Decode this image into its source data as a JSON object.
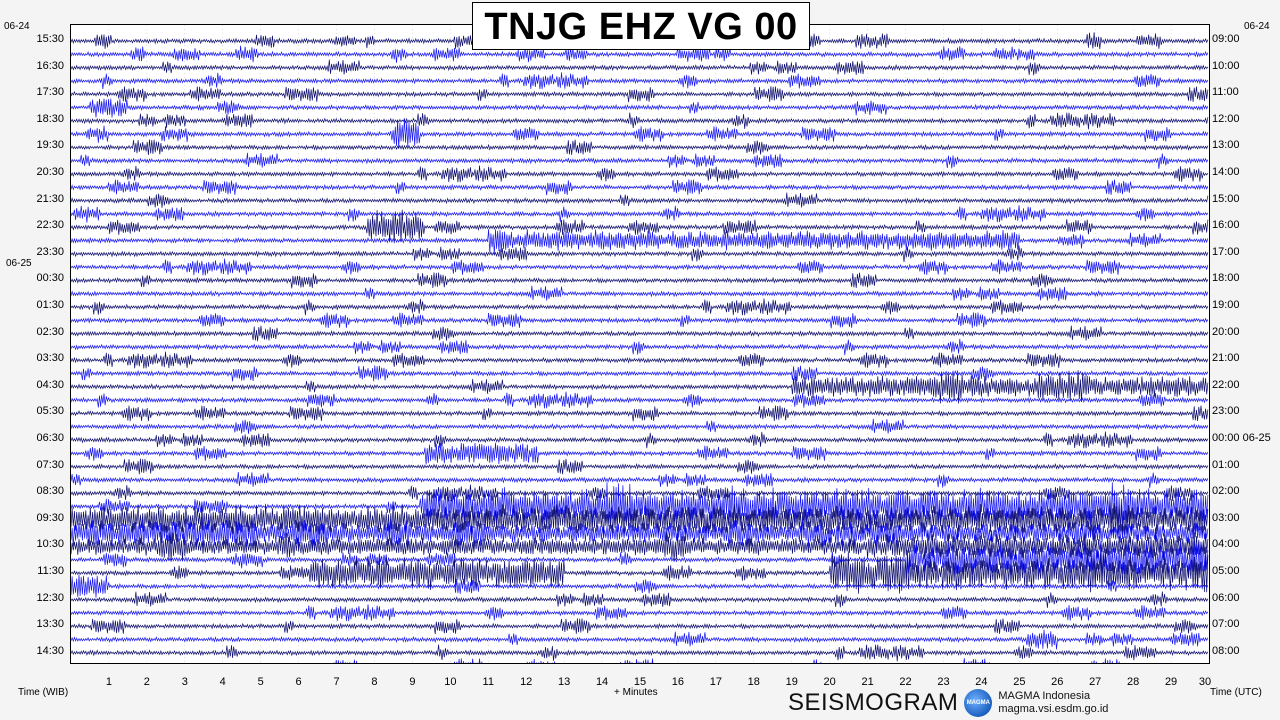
{
  "chart_data": {
    "type": "line",
    "title": "TNJG EHZ VG 00",
    "xlabel": "+ Minutes",
    "left_axis_label": "Time (WIB)",
    "right_axis_label": "Time (UTC)",
    "xlim": [
      0,
      30
    ],
    "x_ticks": [
      "1",
      "2",
      "3",
      "4",
      "5",
      "6",
      "7",
      "8",
      "9",
      "10",
      "11",
      "12",
      "13",
      "14",
      "15",
      "16",
      "17",
      "18",
      "19",
      "20",
      "21",
      "22",
      "23",
      "24",
      "25",
      "26",
      "27",
      "28",
      "29",
      "30"
    ],
    "left_date_top": "06-24",
    "left_date_mid": "06-25",
    "right_date_top": "06-24",
    "left_hour_labels": [
      "15:30",
      "16:30",
      "17:30",
      "18:30",
      "19:30",
      "20:30",
      "21:30",
      "22:30",
      "23:30",
      "00:30",
      "01:30",
      "02:30",
      "03:30",
      "04:30",
      "05:30",
      "06:30",
      "07:30",
      "08:30",
      "09:30",
      "10:30",
      "11:30",
      "12:30",
      "13:30",
      "14:30"
    ],
    "right_hour_labels": [
      "09:00",
      "10:00",
      "11:00",
      "12:00",
      "13:00",
      "14:00",
      "15:00",
      "16:00",
      "17:00",
      "18:00",
      "19:00",
      "20:00",
      "21:00",
      "22:00",
      "23:00",
      "00:00 06-25",
      "01:00",
      "02:00",
      "03:00",
      "04:00",
      "05:00",
      "06:00",
      "07:00",
      "08:00"
    ],
    "trace_count": 48,
    "trace_colors": [
      "#0c0c6e",
      "#1414f0"
    ],
    "events": [
      {
        "trace": 5,
        "start_min": 0.5,
        "end_min": 1.5,
        "amplitude": 0.6
      },
      {
        "trace": 7,
        "start_min": 8.5,
        "end_min": 9.2,
        "amplitude": 0.6
      },
      {
        "trace": 14,
        "start_min": 7.8,
        "end_min": 9.3,
        "amplitude": 1.0
      },
      {
        "trace": 15,
        "start_min": 11,
        "end_min": 25,
        "amplitude": 0.55
      },
      {
        "trace": 26,
        "start_min": 19,
        "end_min": 30,
        "amplitude": 0.6
      },
      {
        "trace": 31,
        "start_min": 9.3,
        "end_min": 12.3,
        "amplitude": 0.7
      },
      {
        "trace": 35,
        "start_min": 9.2,
        "end_min": 30,
        "amplitude": 1.2
      },
      {
        "trace": 36,
        "start_min": 0,
        "end_min": 30,
        "amplitude": 0.9
      },
      {
        "trace": 37,
        "start_min": 0,
        "end_min": 5,
        "amplitude": 0.9
      },
      {
        "trace": 37,
        "start_min": 5,
        "end_min": 30,
        "amplitude": 0.6
      },
      {
        "trace": 38,
        "start_min": 0,
        "end_min": 30,
        "amplitude": 0.5
      },
      {
        "trace": 38,
        "start_min": 21,
        "end_min": 30,
        "amplitude": 0.8
      },
      {
        "trace": 39,
        "start_min": 22,
        "end_min": 30,
        "amplitude": 1.1
      },
      {
        "trace": 40,
        "start_min": 6.3,
        "end_min": 13,
        "amplitude": 1.0
      },
      {
        "trace": 40,
        "start_min": 20,
        "end_min": 30,
        "amplitude": 1.0
      },
      {
        "trace": 41,
        "start_min": 0,
        "end_min": 1,
        "amplitude": 0.7
      },
      {
        "trace": 45,
        "start_min": 25.2,
        "end_min": 26,
        "amplitude": 0.6
      }
    ]
  },
  "footer": {
    "brand_big": "SEISMOGRAM",
    "brand_logo_text": "MAGMA",
    "org_name": "MAGMA Indonesia",
    "org_url": "magma.vsi.esdm.go.id"
  }
}
